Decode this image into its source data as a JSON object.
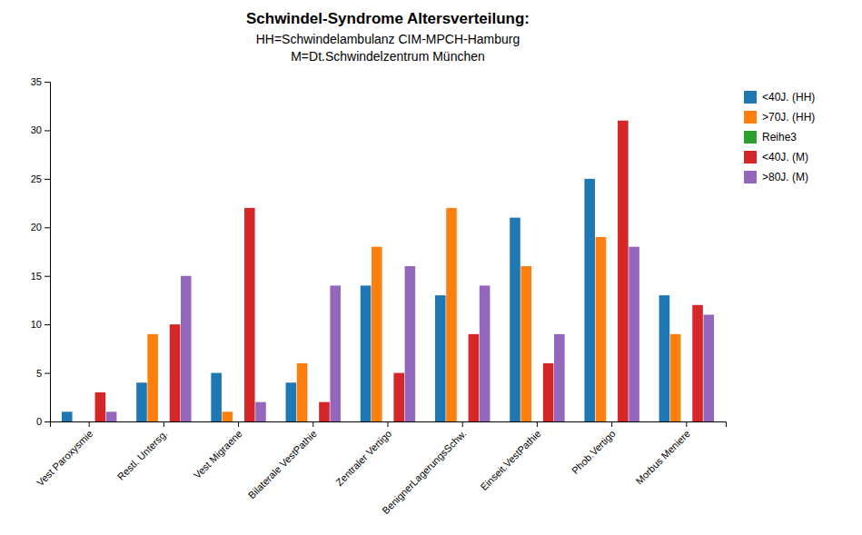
{
  "chart_data": {
    "type": "bar",
    "title": "Schwindel-Syndrome Altersverteilung:",
    "subtitle": [
      "HH=Schwindelambulanz CIM-MPCH-Hamburg",
      "M=Dt.Schwindelzentrum München"
    ],
    "categories": [
      "Vest Paroxysmie",
      "Restl. Untersg.",
      "Vest Migraene",
      "Bilaterale VestPathie",
      "Zentraler Vertigo",
      "BenignerLagerungsSchw.",
      "Einseit.VestPathie",
      "Phob.Vertigo",
      "Morbus Meniere"
    ],
    "series": [
      {
        "name": "<40J. (HH)",
        "values": [
          1,
          4,
          5,
          4,
          14,
          13,
          21,
          25,
          13
        ]
      },
      {
        "name": ">70J. (HH)",
        "values": [
          0,
          9,
          1,
          6,
          18,
          22,
          16,
          19,
          9
        ]
      },
      {
        "name": "Reihe3",
        "values": [
          0,
          0,
          0,
          0,
          0,
          0,
          0,
          0,
          0
        ]
      },
      {
        "name": "<40J. (M)",
        "values": [
          3,
          10,
          22,
          2,
          5,
          9,
          6,
          31,
          12
        ]
      },
      {
        "name": ">80J. (M)",
        "values": [
          1,
          15,
          2,
          14,
          16,
          14,
          9,
          18,
          11
        ]
      }
    ],
    "ylim": [
      0,
      35
    ],
    "yticks": [
      0,
      5,
      10,
      15,
      20,
      25,
      30,
      35
    ],
    "grid": false,
    "legend": "right"
  }
}
